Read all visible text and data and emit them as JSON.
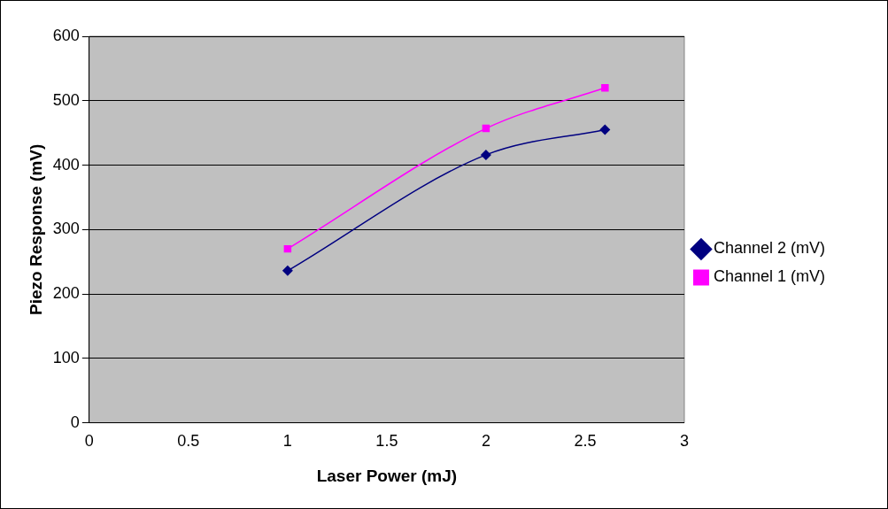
{
  "chart_data": {
    "type": "line",
    "xlabel": "Laser Power (mJ)",
    "ylabel": "Piezo Response (mV)",
    "xlim": [
      0,
      3
    ],
    "xticks": [
      0,
      0.5,
      1,
      1.5,
      2,
      2.5,
      3
    ],
    "ylim": [
      0,
      600
    ],
    "yticks": [
      0,
      100,
      200,
      300,
      400,
      500,
      600
    ],
    "grid": "y",
    "legend": "right",
    "series": [
      {
        "name": "Channel 2 (mV)",
        "color": "#000080",
        "marker": "diamond",
        "x": [
          1,
          2,
          2.6
        ],
        "values": [
          236,
          416,
          455
        ]
      },
      {
        "name": "Channel 1 (mV)",
        "color": "#ff00ff",
        "marker": "square",
        "x": [
          1,
          2,
          2.6
        ],
        "values": [
          270,
          457,
          520
        ]
      }
    ]
  }
}
